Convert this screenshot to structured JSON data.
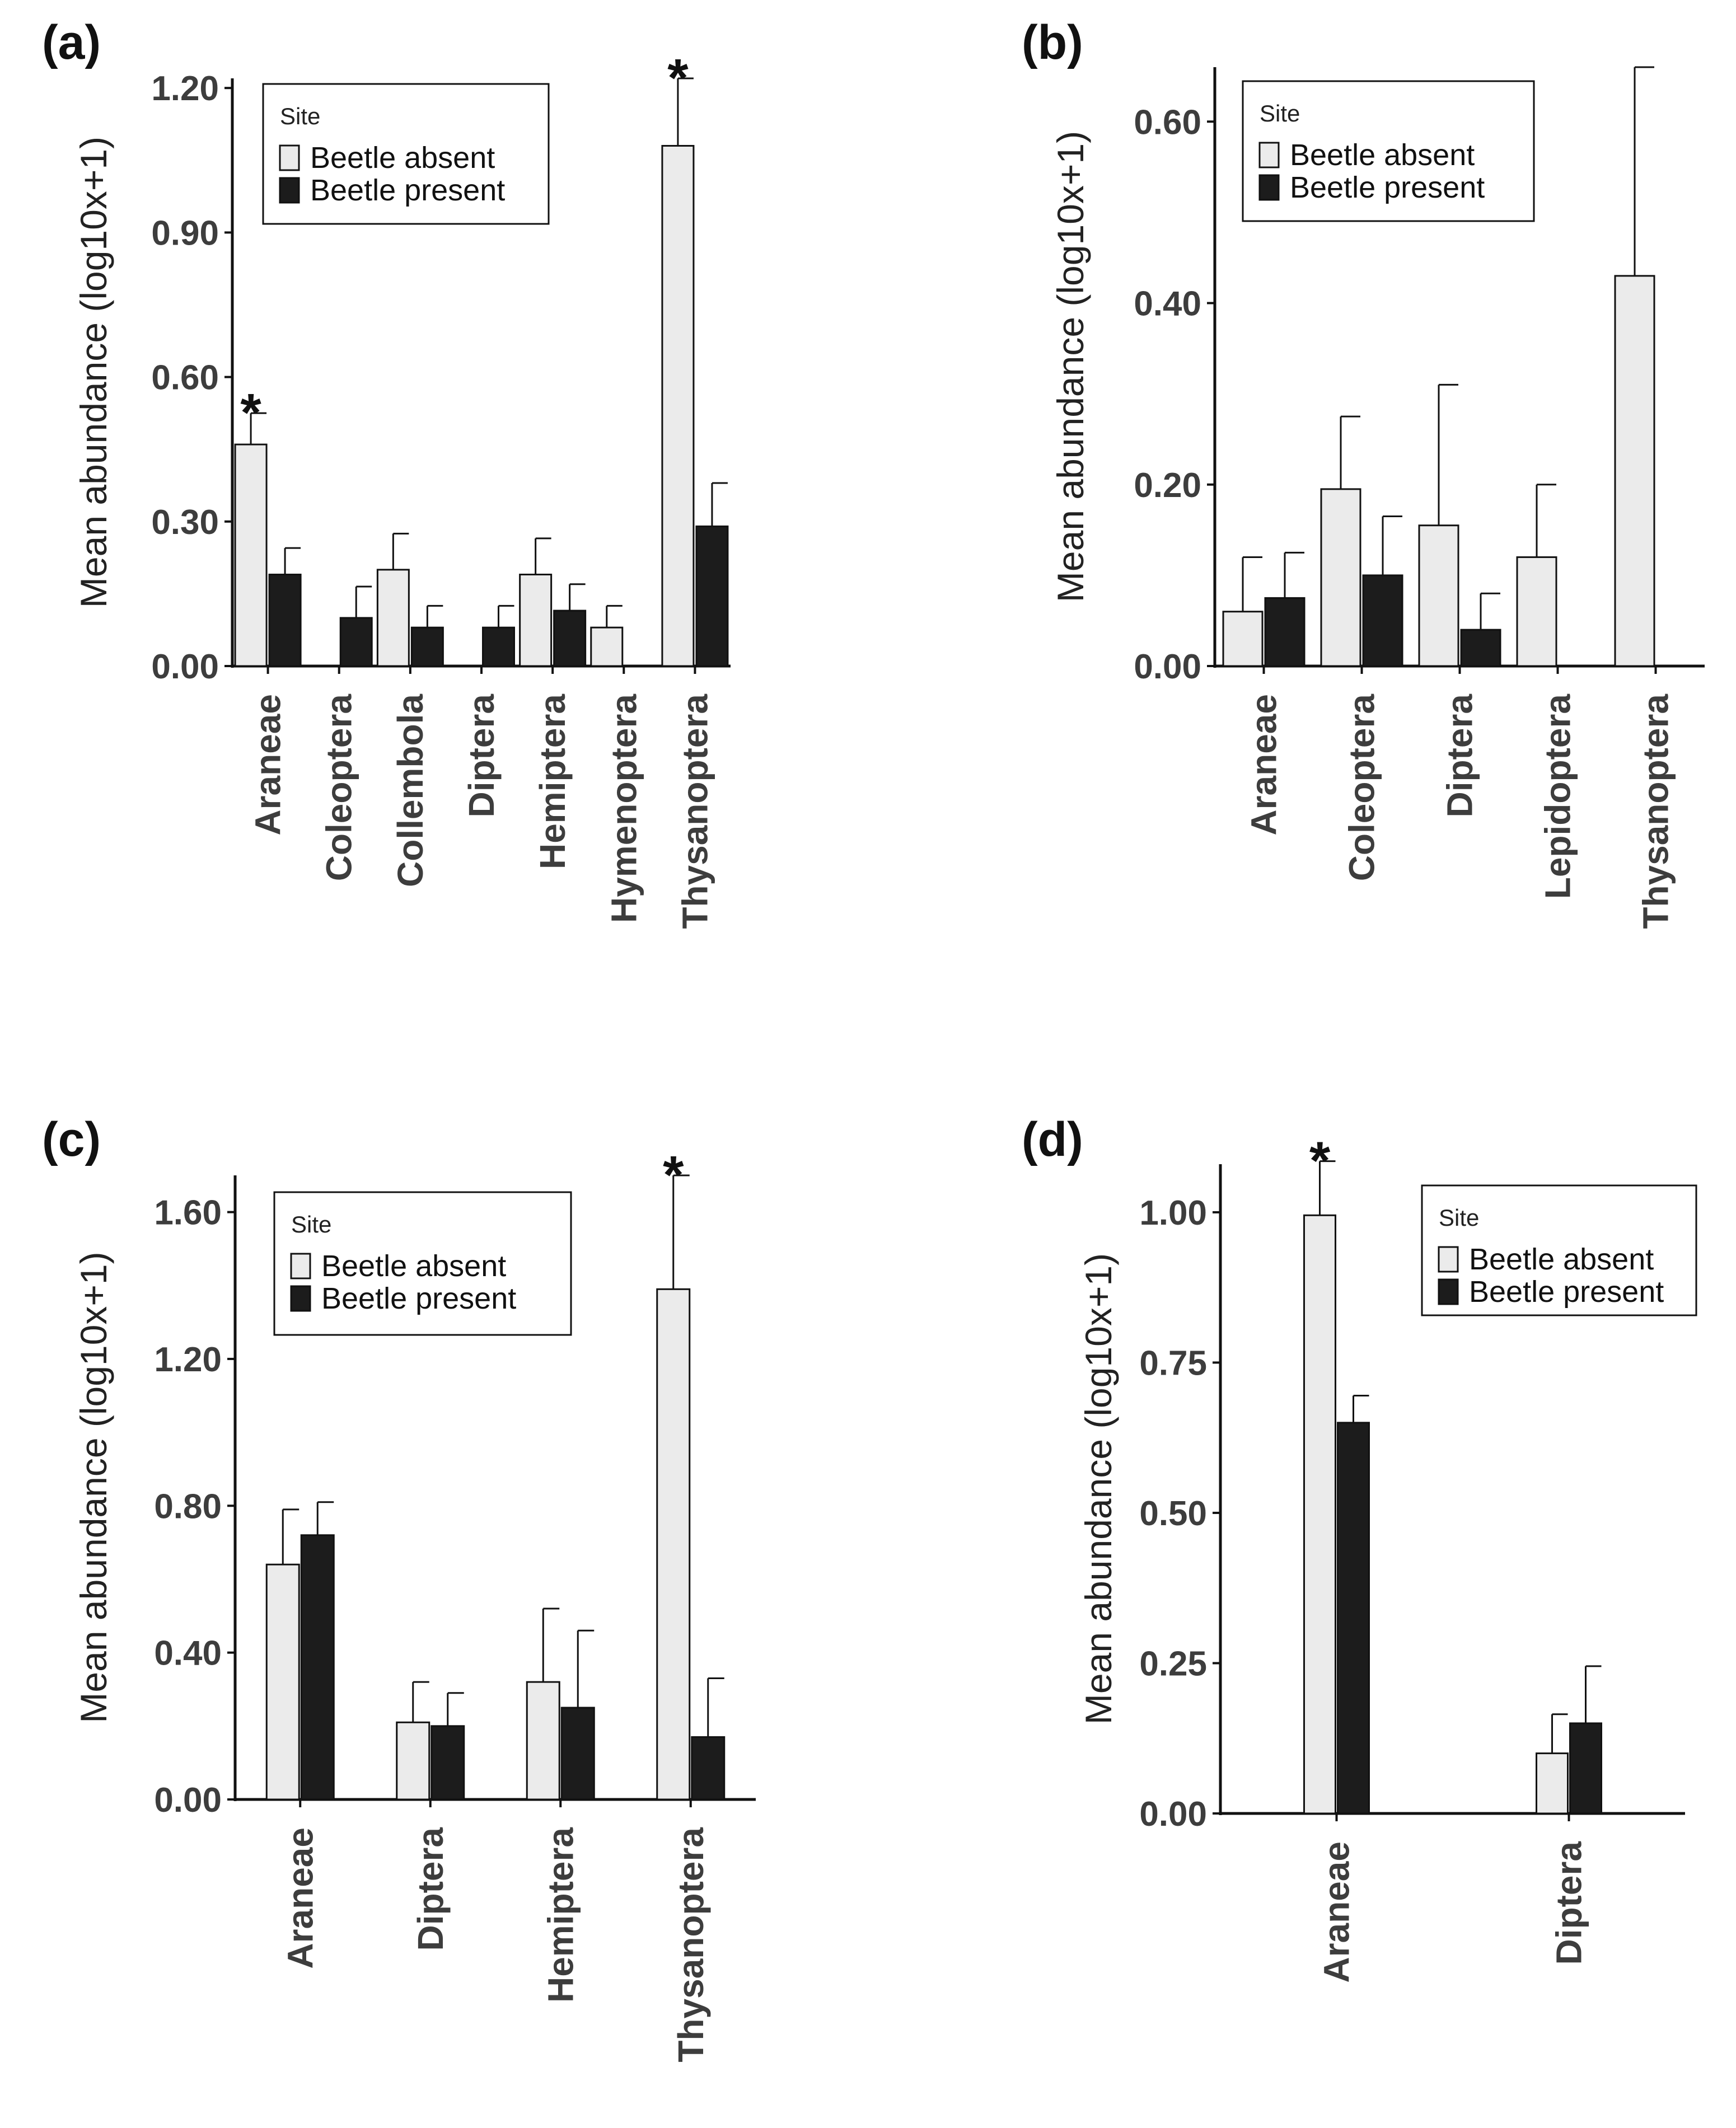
{
  "colors": {
    "absent_fill": "#ebebeb",
    "present_fill": "#1c1c1c",
    "outline": "#111111",
    "axis": "#111111",
    "text": "#3d3d3d"
  },
  "chart_data": [
    {
      "panel": "(a)",
      "type": "bar",
      "ylabel": "Mean abundance (log10x+1)",
      "ylim": [
        0,
        1.22
      ],
      "yticks": [
        "0.00",
        "0.30",
        "0.60",
        "0.90",
        "1.20"
      ],
      "ytick_values": [
        0,
        0.3,
        0.6,
        0.9,
        1.2
      ],
      "categories": [
        "Araneae",
        "Coleoptera",
        "Collembola",
        "Diptera",
        "Hemiptera",
        "Hymenoptera",
        "Thysanoptera"
      ],
      "legend": {
        "title": "Site",
        "entries": [
          "Beetle absent",
          "Beetle present"
        ]
      },
      "series": [
        {
          "name": "Beetle absent",
          "values": [
            0.46,
            null,
            0.2,
            null,
            0.19,
            0.08,
            1.08
          ],
          "errors": [
            0.065,
            null,
            0.075,
            null,
            0.075,
            0.045,
            0.14
          ]
        },
        {
          "name": "Beetle present",
          "values": [
            0.19,
            0.1,
            0.08,
            0.08,
            0.115,
            null,
            0.29
          ],
          "errors": [
            0.055,
            0.065,
            0.045,
            0.045,
            0.055,
            null,
            0.09
          ]
        }
      ],
      "annotations": [
        {
          "category": "Araneae",
          "text": "*"
        },
        {
          "category": "Thysanoptera",
          "text": "*"
        }
      ]
    },
    {
      "panel": "(b)",
      "type": "bar",
      "ylabel": "Mean abundance (log10x+1)",
      "ylim": [
        0,
        0.66
      ],
      "yticks": [
        "0.00",
        "0.20",
        "0.40",
        "0.60"
      ],
      "ytick_values": [
        0,
        0.2,
        0.4,
        0.6
      ],
      "categories": [
        "Araneae",
        "Coleoptera",
        "Diptera",
        "Lepidoptera",
        "Thysanoptera"
      ],
      "legend": {
        "title": "Site",
        "entries": [
          "Beetle absent",
          "Beetle present"
        ]
      },
      "series": [
        {
          "name": "Beetle absent",
          "values": [
            0.06,
            0.195,
            0.155,
            0.12,
            0.43
          ],
          "errors": [
            0.06,
            0.08,
            0.155,
            0.08,
            0.23
          ]
        },
        {
          "name": "Beetle present",
          "values": [
            0.075,
            0.1,
            0.04,
            null,
            null
          ],
          "errors": [
            0.05,
            0.065,
            0.04,
            null,
            null
          ]
        }
      ],
      "annotations": []
    },
    {
      "panel": "(c)",
      "type": "bar",
      "ylabel": "Mean abundance (log10x+1)",
      "ylim": [
        0,
        1.7
      ],
      "yticks": [
        "0.00",
        "0.40",
        "0.80",
        "1.20",
        "1.60"
      ],
      "ytick_values": [
        0,
        0.4,
        0.8,
        1.2,
        1.6
      ],
      "categories": [
        "Araneae",
        "Diptera",
        "Hemiptera",
        "Thysanoptera"
      ],
      "legend": {
        "title": "Site",
        "entries": [
          "Beetle absent",
          "Beetle present"
        ]
      },
      "series": [
        {
          "name": "Beetle absent",
          "values": [
            0.64,
            0.21,
            0.32,
            1.39
          ],
          "errors": [
            0.15,
            0.11,
            0.2,
            0.31
          ]
        },
        {
          "name": "Beetle present",
          "values": [
            0.72,
            0.2,
            0.25,
            0.17
          ],
          "errors": [
            0.09,
            0.09,
            0.21,
            0.16
          ]
        }
      ],
      "annotations": [
        {
          "category": "Thysanoptera",
          "text": "*"
        }
      ]
    },
    {
      "panel": "(d)",
      "type": "bar",
      "ylabel": "Mean abundance (log10x+1)",
      "ylim": [
        0,
        1.08
      ],
      "yticks": [
        "0.00",
        "0.25",
        "0.50",
        "0.75",
        "1.00"
      ],
      "ytick_values": [
        0,
        0.25,
        0.5,
        0.75,
        1.0
      ],
      "categories": [
        "Araneae",
        "Diptera"
      ],
      "legend": {
        "title": "Site",
        "entries": [
          "Beetle absent",
          "Beetle present"
        ]
      },
      "series": [
        {
          "name": "Beetle absent",
          "values": [
            0.995,
            0.1
          ],
          "errors": [
            0.09,
            0.065
          ]
        },
        {
          "name": "Beetle present",
          "values": [
            0.65,
            0.15
          ],
          "errors": [
            0.045,
            0.095
          ]
        }
      ],
      "annotations": [
        {
          "category": "Araneae",
          "text": "*"
        }
      ]
    }
  ]
}
